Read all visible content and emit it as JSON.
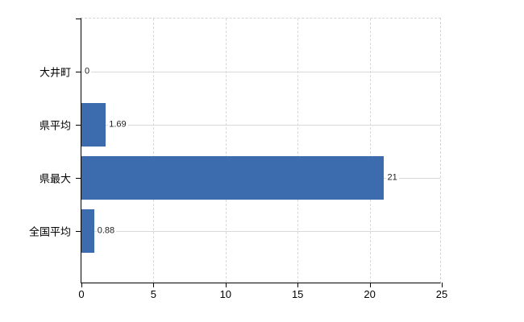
{
  "chart_data": {
    "type": "bar",
    "orientation": "horizontal",
    "title": "",
    "xlabel": "",
    "ylabel": "",
    "categories": [
      "大井町",
      "県平均",
      "県最大",
      "全国平均"
    ],
    "values": [
      0,
      1.69,
      21,
      0.88
    ],
    "value_labels": [
      "0",
      "1.69",
      "21",
      "0.88"
    ],
    "xlim": [
      0,
      25
    ],
    "x_ticks": [
      0,
      5,
      10,
      15,
      20,
      25
    ],
    "grid": true,
    "legend": "none",
    "colors": {
      "bar": "#3c6cae",
      "grid": "#d9d9d9",
      "plot_border": "#d4d4d4",
      "axis": "#000000",
      "category_text": "#000000",
      "tick_text": "#000000",
      "value_text": "#222222",
      "background": "#ffffff"
    }
  }
}
